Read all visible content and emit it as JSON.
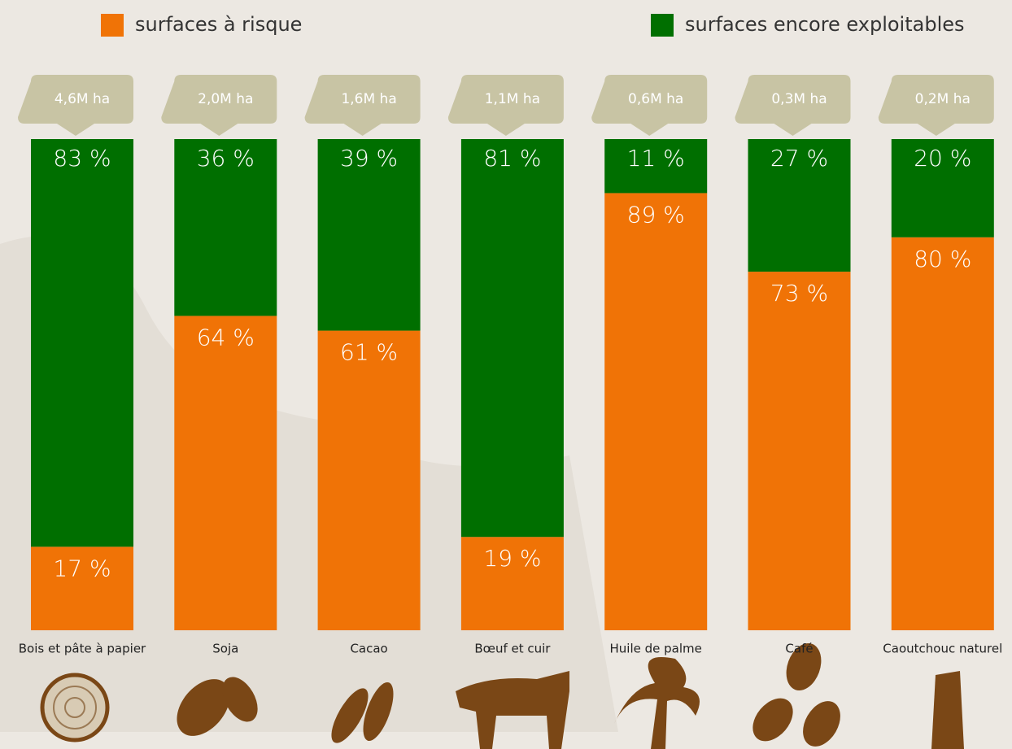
{
  "chart_data": {
    "type": "stacked_bar",
    "categories": [
      "Bois et pâte à papier",
      "Soja",
      "Cacao",
      "Bœuf et cuir",
      "Huile de palme",
      "Café",
      "Caoutchouc naturel"
    ],
    "series": [
      {
        "name": "surfaces à risque",
        "color": "#f07306",
        "values": [
          17,
          64,
          61,
          19,
          89,
          73,
          80
        ],
        "value_labels": [
          "17 %",
          "64 %",
          "61 %",
          "19 %",
          "89 %",
          "73 %",
          "80 %"
        ]
      },
      {
        "name": "surfaces encore exploitables",
        "color": "#006f00",
        "values": [
          83,
          36,
          39,
          81,
          11,
          27,
          20
        ],
        "value_labels": [
          "83 %",
          "36 %",
          "39 %",
          "81 %",
          "11 %",
          "27 %",
          "20 %"
        ]
      }
    ],
    "annotations": [
      "4,6M ha",
      "2,0M ha",
      "1,6M ha",
      "1,1M ha",
      "0,6M ha",
      "0,3M ha",
      "0,2M ha"
    ],
    "ylim": [
      0,
      100
    ]
  }
}
